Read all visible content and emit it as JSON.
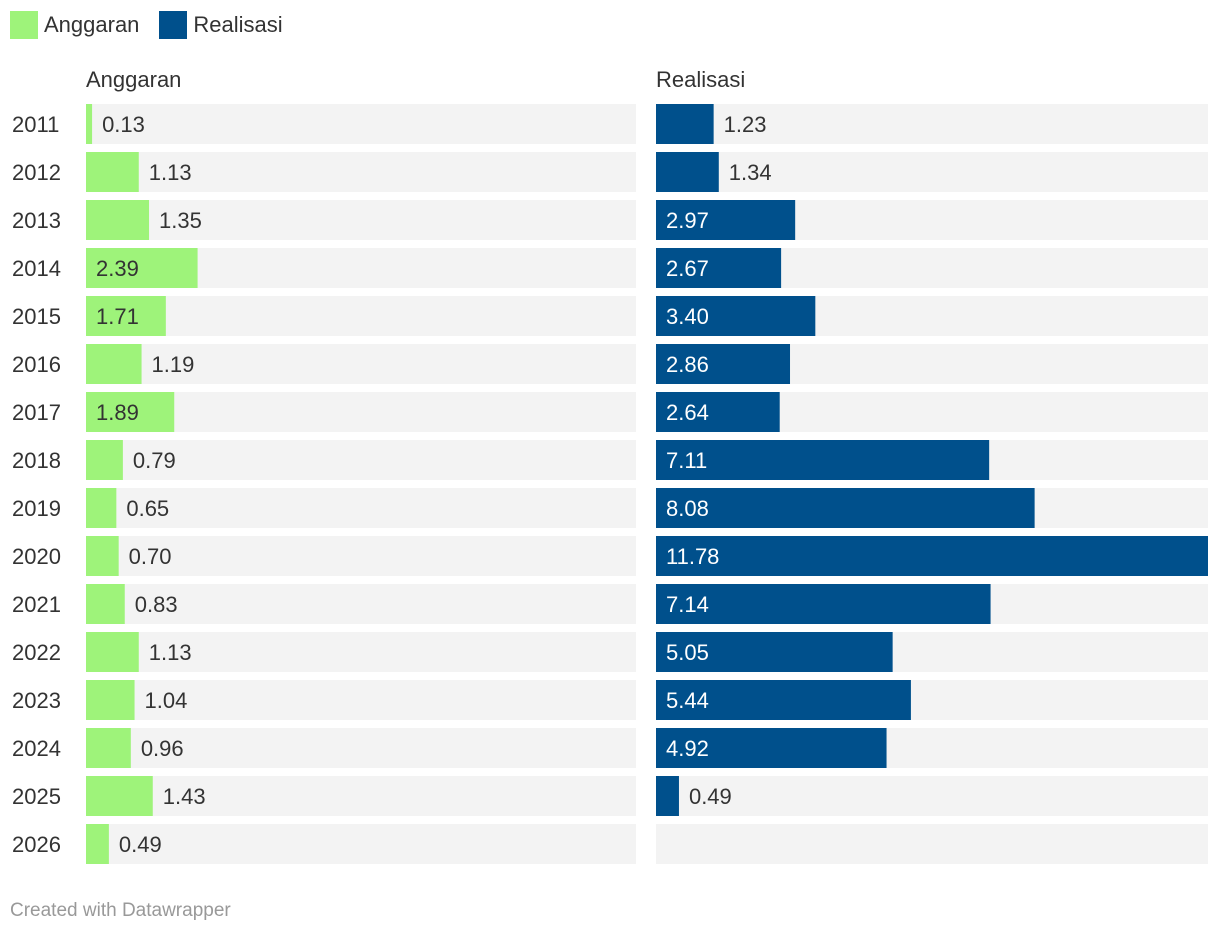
{
  "colors": {
    "anggaran": "#9ef37a",
    "realisasi": "#00508c",
    "track": "#f3f3f3"
  },
  "legend": [
    {
      "label": "Anggaran",
      "color": "#9ef37a"
    },
    {
      "label": "Realisasi",
      "color": "#00508c"
    }
  ],
  "chart_data": {
    "type": "bar",
    "orientation": "horizontal",
    "categories": [
      "2011",
      "2012",
      "2013",
      "2014",
      "2015",
      "2016",
      "2017",
      "2018",
      "2019",
      "2020",
      "2021",
      "2022",
      "2023",
      "2024",
      "2025",
      "2026"
    ],
    "xlim": [
      0,
      11.78
    ],
    "series": [
      {
        "name": "Anggaran",
        "color": "#9ef37a",
        "values": [
          0.13,
          1.13,
          1.35,
          2.39,
          1.71,
          1.19,
          1.89,
          0.79,
          0.65,
          0.7,
          0.83,
          1.13,
          1.04,
          0.96,
          1.43,
          0.49
        ],
        "labels": [
          "0.13",
          "1.13",
          "1.35",
          "2.39",
          "1.71",
          "1.19",
          "1.89",
          "0.79",
          "0.65",
          "0.70",
          "0.83",
          "1.13",
          "1.04",
          "0.96",
          "1.43",
          "0.49"
        ]
      },
      {
        "name": "Realisasi",
        "color": "#00508c",
        "values": [
          1.23,
          1.34,
          2.97,
          2.67,
          3.4,
          2.86,
          2.64,
          7.11,
          8.08,
          11.78,
          7.14,
          5.05,
          5.44,
          4.92,
          0.49,
          null
        ],
        "labels": [
          "1.23",
          "1.34",
          "2.97",
          "2.67",
          "3.40",
          "2.86",
          "2.64",
          "7.11",
          "8.08",
          "11.78",
          "7.14",
          "5.05",
          "5.44",
          "4.92",
          "0.49",
          ""
        ]
      }
    ]
  },
  "footer": "Created with Datawrapper"
}
